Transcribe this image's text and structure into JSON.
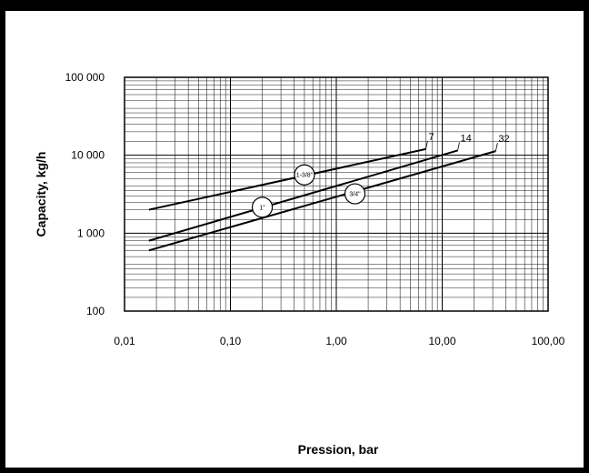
{
  "chart_data": {
    "type": "line",
    "xlabel": "Pression, bar",
    "ylabel": "Capacity, kg/h",
    "x_scale": "log",
    "y_scale": "log",
    "xlim": [
      0.01,
      100
    ],
    "ylim": [
      100,
      100000
    ],
    "x_ticks": [
      0.01,
      0.1,
      1,
      10,
      100
    ],
    "x_tick_labels": [
      "0,01",
      "0,10",
      "1,00",
      "10,00",
      "100,00"
    ],
    "y_ticks": [
      100,
      1000,
      10000,
      100000
    ],
    "y_tick_labels": [
      "100",
      "1 000",
      "10 000",
      "100 000"
    ],
    "grid": true,
    "series": [
      {
        "name": "7",
        "size_label": "1-3/8\"",
        "x": [
          0.017,
          7
        ],
        "y": [
          2000,
          12000
        ],
        "label_at": [
          0.5,
          5600
        ]
      },
      {
        "name": "14",
        "size_label": "1\"",
        "x": [
          0.017,
          14
        ],
        "y": [
          800,
          11500
        ],
        "label_at": [
          0.2,
          2150
        ]
      },
      {
        "name": "32",
        "size_label": "3/4\"",
        "x": [
          0.017,
          32
        ],
        "y": [
          600,
          11300
        ],
        "label_at": [
          1.5,
          3200
        ]
      }
    ],
    "colors": {
      "line": "#000000",
      "grid": "#000000",
      "frame": "#000000"
    }
  }
}
